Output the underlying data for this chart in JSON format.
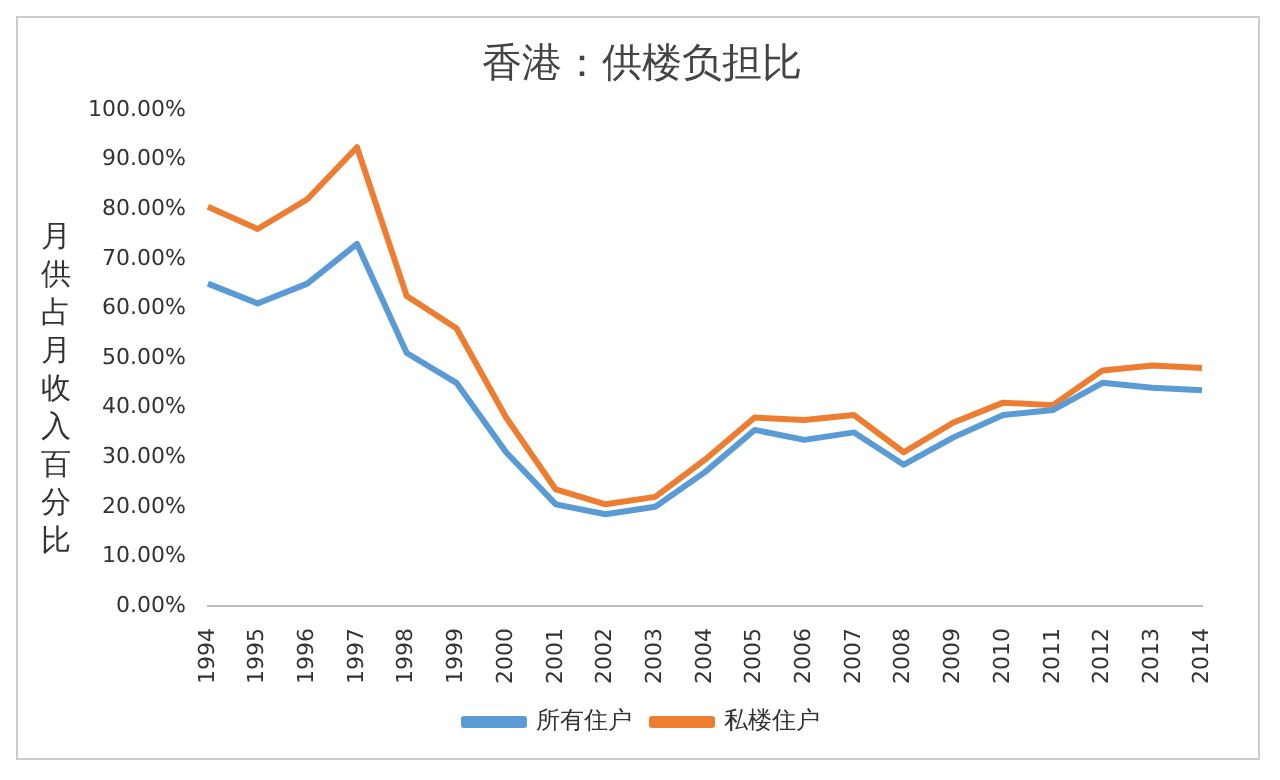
{
  "chart_data": {
    "type": "line",
    "title": "香港：供楼负担比",
    "ylabel": "月供占月收入百分比",
    "categories": [
      "1994",
      "1995",
      "1996",
      "1997",
      "1998",
      "1999",
      "2000",
      "2001",
      "2002",
      "2003",
      "2004",
      "2005",
      "2006",
      "2007",
      "2008",
      "2009",
      "2010",
      "2011",
      "2012",
      "2013",
      "2014"
    ],
    "series": [
      {
        "name": "所有住户",
        "color": "#5b9bd5",
        "values": [
          65,
          61,
          65,
          73,
          51,
          45,
          31,
          20.5,
          18.5,
          20,
          27,
          35.5,
          33.5,
          35,
          28.5,
          34,
          38.5,
          39.5,
          45,
          44,
          43.5
        ]
      },
      {
        "name": "私楼住户",
        "color": "#ed7d31",
        "values": [
          80.5,
          76,
          82,
          92.5,
          62.5,
          56,
          38,
          23.5,
          20.5,
          22,
          29.5,
          38,
          37.5,
          38.5,
          31,
          37,
          41,
          40.5,
          47.5,
          48.5,
          48
        ]
      }
    ],
    "ylim": [
      0,
      100
    ],
    "yticks": [
      {
        "value": 0,
        "label": "0.00%"
      },
      {
        "value": 10,
        "label": "10.00%"
      },
      {
        "value": 20,
        "label": "20.00%"
      },
      {
        "value": 30,
        "label": "30.00%"
      },
      {
        "value": 40,
        "label": "40.00%"
      },
      {
        "value": 50,
        "label": "50.00%"
      },
      {
        "value": 60,
        "label": "60.00%"
      },
      {
        "value": 70,
        "label": "70.00%"
      },
      {
        "value": 80,
        "label": "80.00%"
      },
      {
        "value": 90,
        "label": "90.00%"
      },
      {
        "value": 100,
        "label": "100.00%"
      }
    ],
    "grid": false,
    "legend": "bottom",
    "marker": "none",
    "line_style": "solid"
  }
}
